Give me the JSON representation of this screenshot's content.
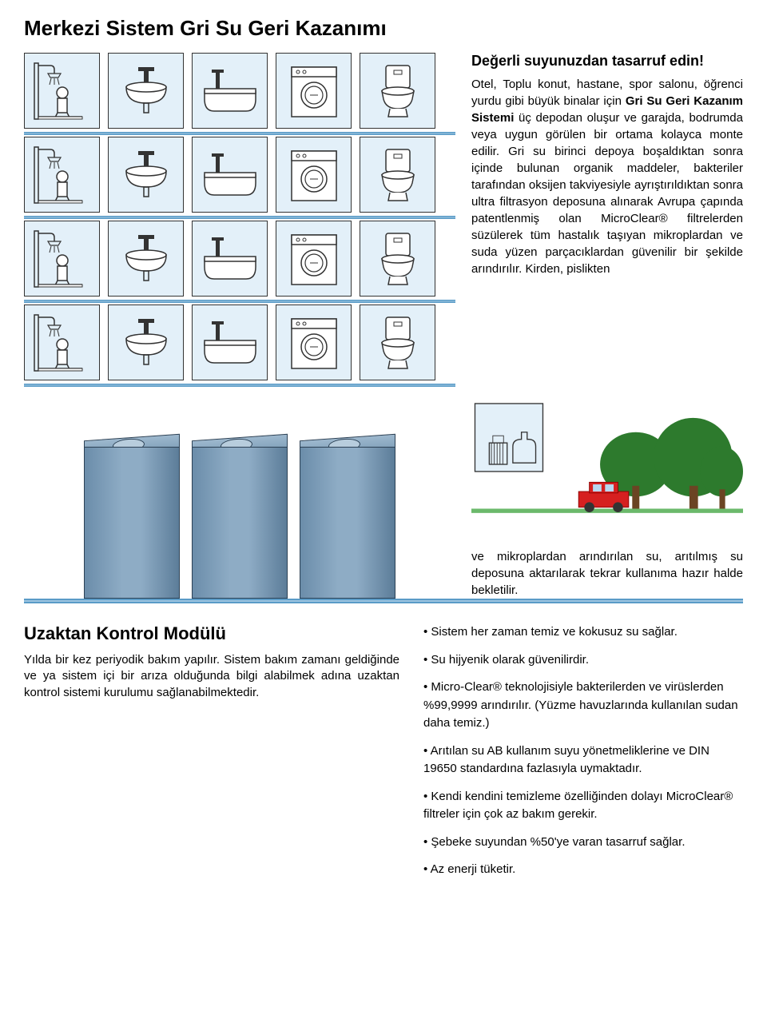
{
  "title": "Merkezi Sistem Gri Su Geri Kazanımı",
  "subtitle": "Değerli suyunuzdan tasarruf edin!",
  "para1_pre": "Otel, Toplu konut, hastane, spor salonu, öğrenci yurdu gibi büyük binalar için ",
  "para1_bold": "Gri Su Geri Kazanım Sistemi",
  "para1_post": " üç depodan oluşur ve garajda, bodrumda veya uygun görülen bir ortama kolayca monte edilir. Gri su birinci depoya boşaldıktan sonra içinde bulunan organik maddeler, bakteriler tarafından oksijen takviyesiyle ayrıştırıldıktan sonra ultra filtrasyon deposuna alınarak Avrupa çapında patentlenmiş olan MicroClear® filtrelerden süzülerek tüm hastalık taşıyan mikroplardan ve suda yüzen parçacıklardan güvenilir bir şekilde arındırılır. Kirden, pislikten",
  "para2": "ve mikroplardan arındırılan su, arıtılmış su deposuna aktarılarak tekrar kullanıma hazır halde bekletilir.",
  "module_title": "Uzaktan Kontrol Modülü",
  "module_para": "Yılda bir kez periyodik bakım yapılır. Sistem bakım zamanı geldiğinde ve ya sistem içi bir arıza olduğunda bilgi alabilmek adına uzaktan kontrol sistemi kurulumu sağlanabilmektedir.",
  "bullets": [
    "• Sistem her zaman temiz ve kokusuz su sağlar.",
    "• Su hijyenik olarak güvenilirdir.",
    "• Micro-Clear® teknolojisiyle bakterilerden ve virüslerden %99,9999 arındırılır. (Yüzme havuzlarında kullanılan sudan daha temiz.)",
    "• Arıtılan su AB kullanım suyu yönetmeliklerine ve DIN 19650 standardına fazlasıyla uymaktadır.",
    "• Kendi kendini temizleme özelliğinden dolayı MicroClear® filtreler için çok az bakım gerekir.",
    "• Şebeke suyundan %50'ye varan tasarruf sağlar.",
    "• Az enerji tüketir."
  ],
  "colors": {
    "fixture_bg": "#e3f0f9",
    "tank_light": "#8eacc5",
    "tank_dark": "#5c7d99",
    "pipe": "#7fb3d5",
    "tree_green": "#2d7a2d",
    "tree_trunk": "#6b4423",
    "car_red": "#d62020",
    "grass": "#3a8a3a"
  },
  "fixtures": {
    "types": [
      "shower",
      "sink",
      "bathtub",
      "washer",
      "toilet"
    ],
    "rows": 4
  }
}
